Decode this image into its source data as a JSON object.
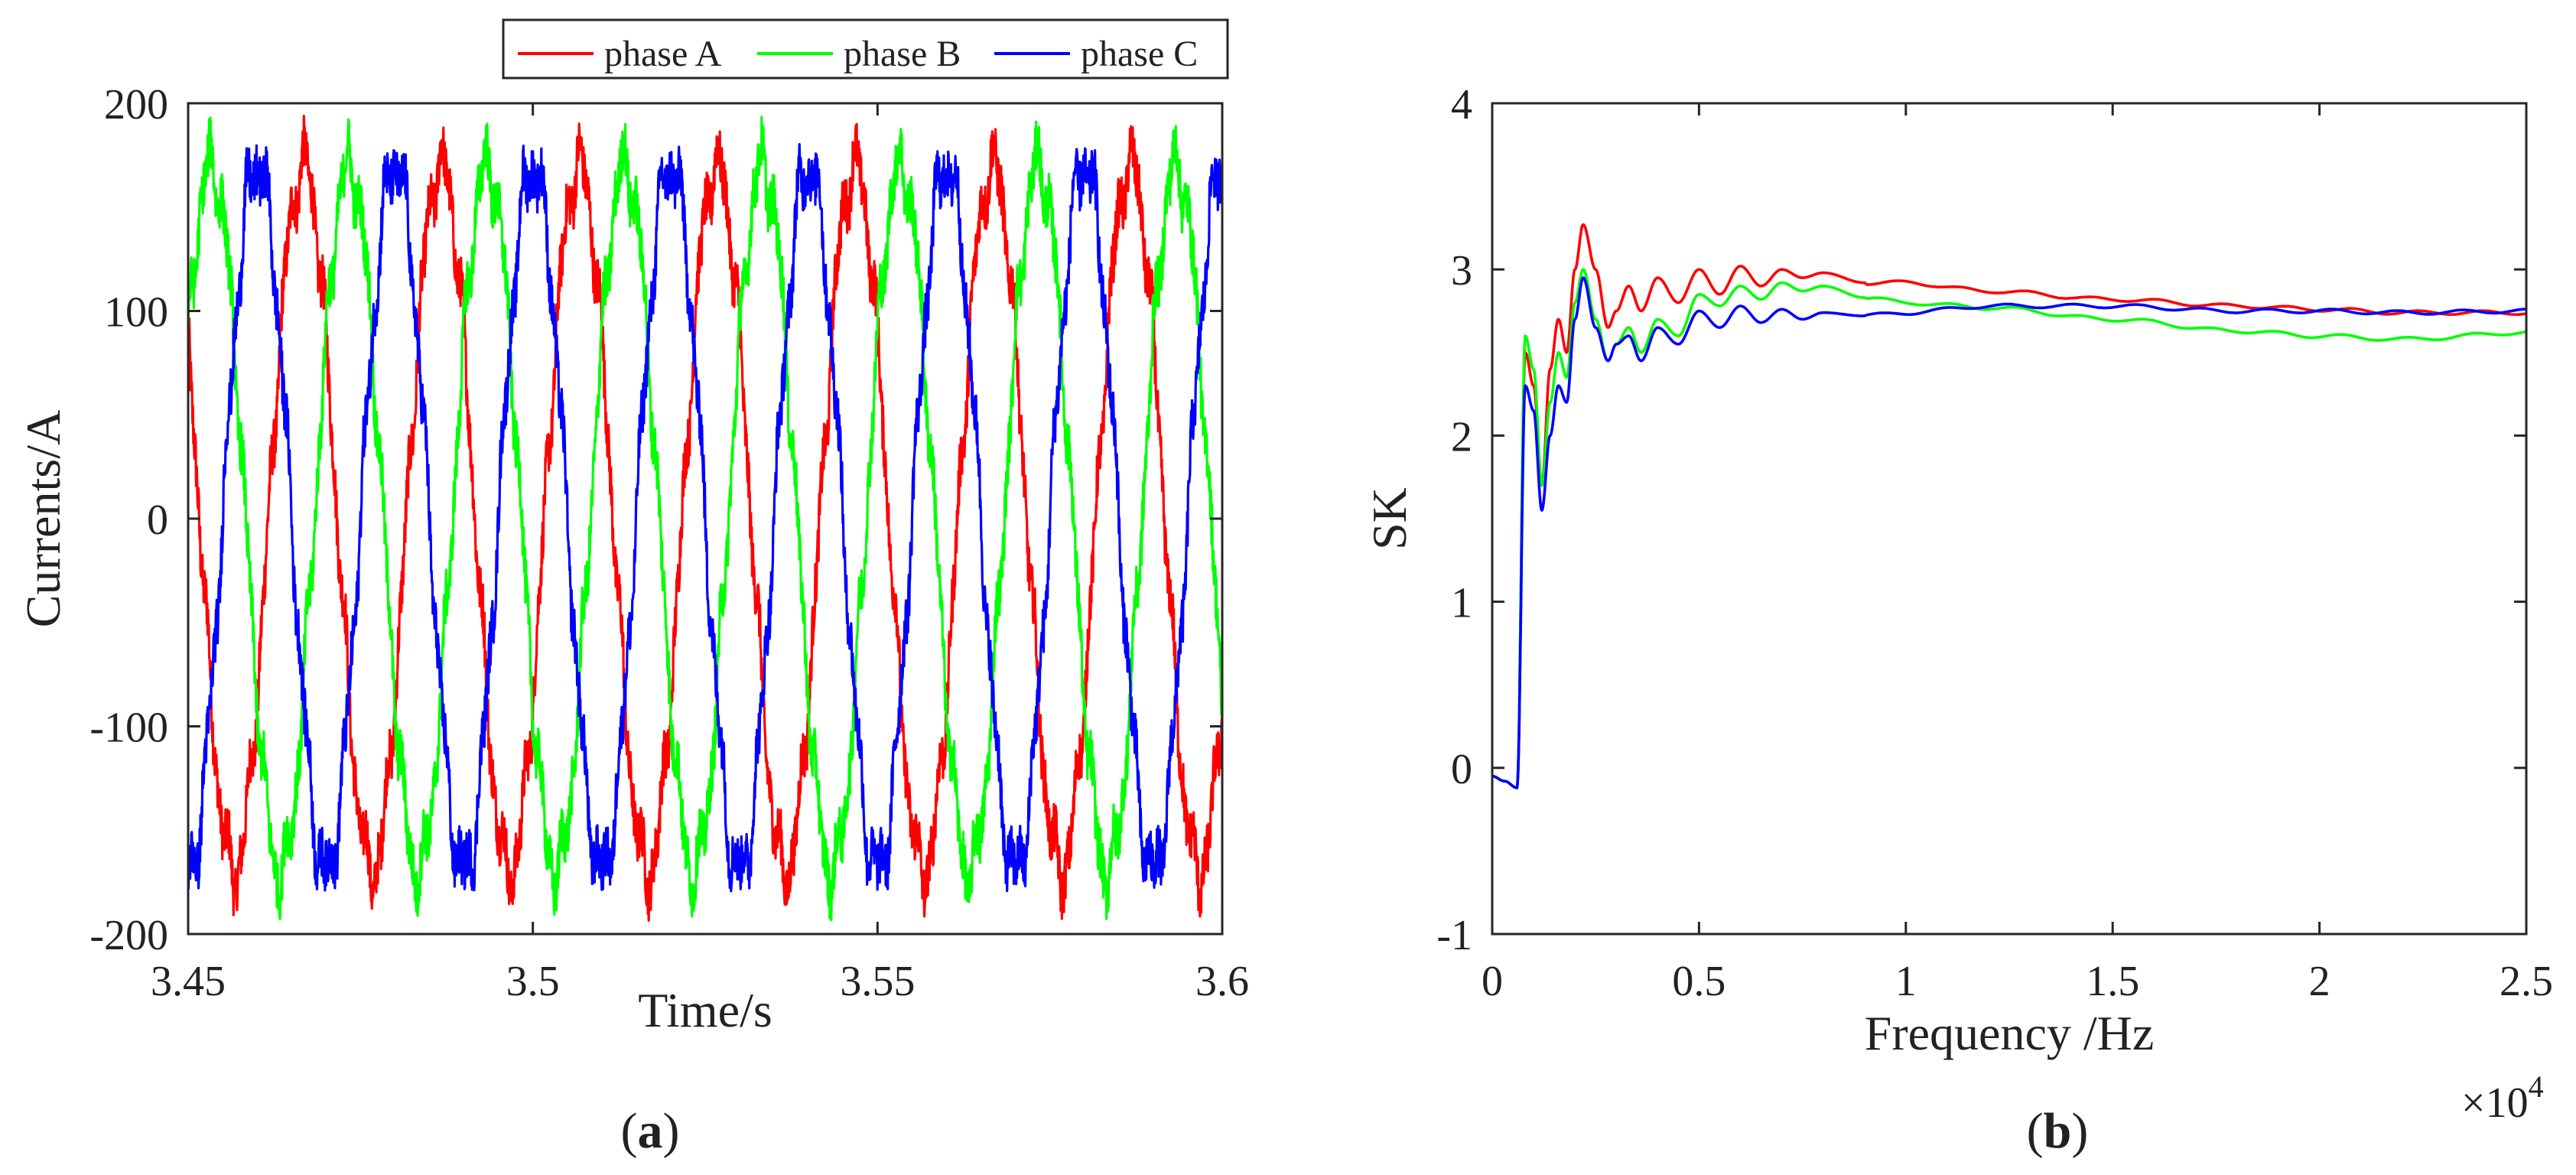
{
  "chart_data": [
    {
      "id": "a",
      "type": "line",
      "caption": "(a)",
      "caption_letter": "a",
      "title": "",
      "xlabel": "Time/s",
      "ylabel": "Currents/A",
      "xlim": [
        3.45,
        3.6
      ],
      "ylim": [
        -200,
        200
      ],
      "xticks": [
        3.45,
        3.5,
        3.55,
        3.6
      ],
      "xtick_labels": [
        "3.45",
        "3.5",
        "3.55",
        "3.6"
      ],
      "yticks": [
        -200,
        -100,
        0,
        100,
        200
      ],
      "ytick_labels": [
        "-200",
        "-100",
        "0",
        "100",
        "200"
      ],
      "grid": false,
      "legend_position": "top-right, above axes, horizontal",
      "signal": {
        "fundamental_hz": 50,
        "amplitude": 170,
        "noise_amplitude": 25,
        "x_start": 3.45,
        "x_end": 3.6
      },
      "series": [
        {
          "name": "phase A",
          "color": "#ff0000",
          "phase_deg": -30
        },
        {
          "name": "phase B",
          "color": "#00ff00",
          "phase_deg": -150
        },
        {
          "name": "phase C",
          "color": "#0000ff",
          "phase_deg": 90
        }
      ]
    },
    {
      "id": "b",
      "type": "line",
      "caption": "(b)",
      "caption_letter": "b",
      "title": "",
      "xlabel": "Frequency /Hz",
      "ylabel": "SK",
      "x_scale_note": "×10",
      "x_scale_exponent": "4",
      "xlim": [
        0,
        2.5
      ],
      "ylim": [
        -1,
        4
      ],
      "xticks": [
        0,
        0.5,
        1,
        1.5,
        2,
        2.5
      ],
      "xtick_labels": [
        "0",
        "0.5",
        "1",
        "1.5",
        "2",
        "2.5"
      ],
      "yticks": [
        -1,
        0,
        1,
        2,
        3,
        4
      ],
      "ytick_labels": [
        "-1",
        "0",
        "1",
        "2",
        "3",
        "4"
      ],
      "grid": false,
      "series": [
        {
          "name": "phase A",
          "color": "#ff0000",
          "x": [
            0,
            0.03,
            0.06,
            0.08,
            0.1,
            0.12,
            0.14,
            0.16,
            0.18,
            0.2,
            0.22,
            0.25,
            0.28,
            0.3,
            0.33,
            0.36,
            0.4,
            0.45,
            0.5,
            0.55,
            0.6,
            0.65,
            0.7,
            0.75,
            0.8,
            0.9,
            1.0,
            1.2,
            1.5,
            1.8,
            2.0,
            2.2,
            2.5
          ],
          "y": [
            -0.05,
            -0.08,
            -0.12,
            2.5,
            2.3,
            1.7,
            2.4,
            2.7,
            2.5,
            3.0,
            3.27,
            3.0,
            2.65,
            2.75,
            2.9,
            2.75,
            2.95,
            2.8,
            3.0,
            2.85,
            3.02,
            2.9,
            3.0,
            2.95,
            2.98,
            2.92,
            2.92,
            2.87,
            2.82,
            2.78,
            2.76,
            2.74,
            2.74
          ]
        },
        {
          "name": "phase B",
          "color": "#00ff00",
          "x": [
            0,
            0.03,
            0.06,
            0.08,
            0.1,
            0.12,
            0.14,
            0.16,
            0.18,
            0.2,
            0.22,
            0.25,
            0.28,
            0.3,
            0.33,
            0.36,
            0.4,
            0.45,
            0.5,
            0.55,
            0.6,
            0.65,
            0.7,
            0.75,
            0.8,
            0.9,
            1.0,
            1.2,
            1.5,
            1.8,
            2.0,
            2.2,
            2.5
          ],
          "y": [
            -0.05,
            -0.08,
            -0.12,
            2.6,
            2.4,
            1.7,
            2.2,
            2.5,
            2.35,
            2.8,
            3.0,
            2.7,
            2.45,
            2.55,
            2.65,
            2.5,
            2.7,
            2.6,
            2.85,
            2.78,
            2.9,
            2.82,
            2.92,
            2.87,
            2.9,
            2.83,
            2.8,
            2.77,
            2.7,
            2.63,
            2.6,
            2.58,
            2.62
          ]
        },
        {
          "name": "phase C",
          "color": "#0000ff",
          "x": [
            0,
            0.03,
            0.06,
            0.08,
            0.1,
            0.12,
            0.14,
            0.16,
            0.18,
            0.2,
            0.22,
            0.25,
            0.28,
            0.3,
            0.33,
            0.36,
            0.4,
            0.45,
            0.5,
            0.55,
            0.6,
            0.65,
            0.7,
            0.75,
            0.8,
            0.9,
            1.0,
            1.2,
            1.5,
            1.8,
            2.0,
            2.2,
            2.5
          ],
          "y": [
            -0.05,
            -0.08,
            -0.12,
            2.3,
            2.15,
            1.55,
            2.0,
            2.3,
            2.2,
            2.7,
            2.95,
            2.65,
            2.45,
            2.55,
            2.6,
            2.45,
            2.65,
            2.55,
            2.75,
            2.65,
            2.78,
            2.68,
            2.76,
            2.7,
            2.74,
            2.72,
            2.74,
            2.78,
            2.78,
            2.75,
            2.75,
            2.74,
            2.75
          ]
        }
      ]
    }
  ]
}
